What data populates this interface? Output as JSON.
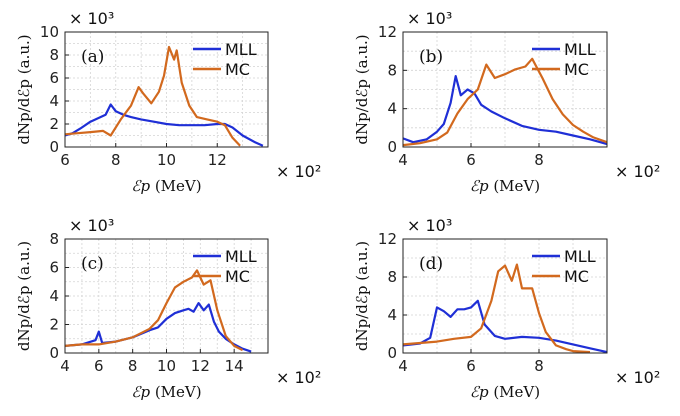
{
  "chart_data": [
    {
      "type": "line",
      "panel_label": "(a)",
      "xlabel_sym": "ℰp",
      "xlabel_unit": "(MeV)",
      "ylabel": "dNp/dℰp (a.u.)",
      "x_multiplier": "× 10²",
      "y_multiplier": "× 10³",
      "xlim": [
        6,
        14
      ],
      "ylim": [
        0,
        10
      ],
      "xticks": [
        6,
        8,
        10,
        12
      ],
      "yticks": [
        0,
        2,
        4,
        6,
        8,
        10
      ],
      "grid": true,
      "legend_position": "top-right",
      "series": [
        {
          "name": "MLL",
          "color": "#1f2fd6",
          "x": [
            6,
            6.3,
            6.6,
            7,
            7.3,
            7.6,
            7.8,
            8,
            8.3,
            8.6,
            9,
            9.5,
            10,
            10.5,
            11,
            11.5,
            12,
            12.3,
            12.6,
            13,
            13.5,
            13.8
          ],
          "y": [
            1.0,
            1.2,
            1.6,
            2.2,
            2.5,
            2.8,
            3.7,
            3.1,
            2.8,
            2.6,
            2.4,
            2.2,
            2.0,
            1.9,
            1.9,
            1.9,
            2.0,
            2.0,
            1.7,
            1.0,
            0.4,
            0.1
          ]
        },
        {
          "name": "MC",
          "color": "#d2691e",
          "x": [
            6,
            6.5,
            7,
            7.5,
            7.8,
            8.2,
            8.6,
            8.9,
            9.1,
            9.4,
            9.7,
            9.9,
            10.1,
            10.3,
            10.4,
            10.6,
            10.9,
            11.2,
            11.6,
            12,
            12.3,
            12.6,
            12.9
          ],
          "y": [
            1.1,
            1.2,
            1.3,
            1.4,
            1.0,
            2.4,
            3.6,
            5.2,
            4.6,
            3.8,
            4.8,
            6.2,
            8.7,
            7.6,
            8.4,
            5.6,
            3.6,
            2.6,
            2.4,
            2.2,
            1.9,
            0.8,
            0.1
          ]
        }
      ]
    },
    {
      "type": "line",
      "panel_label": "(b)",
      "xlabel_sym": "ℰp",
      "xlabel_unit": "(MeV)",
      "ylabel": "dNp/dℰp (a.u.)",
      "x_multiplier": "× 10²",
      "y_multiplier": "× 10³",
      "xlim": [
        4,
        10
      ],
      "ylim": [
        0,
        12
      ],
      "xticks": [
        4,
        6,
        8
      ],
      "yticks": [
        0,
        4,
        8,
        12
      ],
      "grid": true,
      "legend_position": "top-right",
      "series": [
        {
          "name": "MLL",
          "color": "#1f2fd6",
          "x": [
            4,
            4.3,
            4.7,
            5,
            5.2,
            5.4,
            5.55,
            5.7,
            5.9,
            6.1,
            6.3,
            6.6,
            7,
            7.5,
            8,
            8.5,
            9,
            9.5,
            10
          ],
          "y": [
            0.9,
            0.5,
            0.8,
            1.6,
            2.4,
            4.6,
            7.4,
            5.4,
            6.0,
            5.6,
            4.4,
            3.7,
            3.0,
            2.2,
            1.8,
            1.6,
            1.2,
            0.8,
            0.3
          ]
        },
        {
          "name": "MC",
          "color": "#d2691e",
          "x": [
            4,
            4.5,
            5,
            5.3,
            5.6,
            5.9,
            6.2,
            6.45,
            6.7,
            7,
            7.3,
            7.6,
            7.8,
            8.1,
            8.4,
            8.7,
            9,
            9.3,
            9.6,
            10
          ],
          "y": [
            0.2,
            0.4,
            0.8,
            1.5,
            3.5,
            5.0,
            6.0,
            8.6,
            7.2,
            7.6,
            8.1,
            8.4,
            9.2,
            7.2,
            5.0,
            3.4,
            2.3,
            1.6,
            1.0,
            0.5
          ]
        }
      ]
    },
    {
      "type": "line",
      "panel_label": "(c)",
      "xlabel_sym": "ℰp",
      "xlabel_unit": "(MeV)",
      "ylabel": "dNp/dℰp (a.u.)",
      "x_multiplier": "× 10²",
      "y_multiplier": "× 10³",
      "xlim": [
        4,
        16
      ],
      "ylim": [
        0,
        8
      ],
      "xticks": [
        4,
        6,
        8,
        10,
        12,
        14
      ],
      "yticks": [
        0,
        2,
        4,
        6,
        8
      ],
      "grid": true,
      "legend_position": "top-right",
      "series": [
        {
          "name": "MLL",
          "color": "#1f2fd6",
          "x": [
            4,
            5,
            5.8,
            6,
            6.2,
            7,
            8,
            9,
            9.5,
            10,
            10.5,
            11,
            11.3,
            11.6,
            11.9,
            12.2,
            12.5,
            12.8,
            13.1,
            13.5,
            14,
            14.5,
            15
          ],
          "y": [
            0.5,
            0.6,
            0.9,
            1.5,
            0.7,
            0.8,
            1.1,
            1.6,
            1.8,
            2.4,
            2.8,
            3.0,
            3.1,
            2.9,
            3.5,
            3.0,
            3.4,
            2.2,
            1.5,
            1.0,
            0.6,
            0.3,
            0.1
          ]
        },
        {
          "name": "MC",
          "color": "#d2691e",
          "x": [
            4,
            5,
            6,
            7,
            8,
            9,
            9.5,
            10,
            10.5,
            11,
            11.5,
            11.8,
            12.2,
            12.6,
            13,
            13.5,
            14,
            14.5
          ],
          "y": [
            0.5,
            0.6,
            0.6,
            0.8,
            1.1,
            1.7,
            2.3,
            3.5,
            4.6,
            5.0,
            5.3,
            5.8,
            4.8,
            5.1,
            3.0,
            1.2,
            0.5,
            0.2
          ]
        }
      ]
    },
    {
      "type": "line",
      "panel_label": "(d)",
      "xlabel_sym": "ℰp",
      "xlabel_unit": "(MeV)",
      "ylabel": "dNp/dℰp (a.u.)",
      "x_multiplier": "× 10²",
      "y_multiplier": "× 10³",
      "xlim": [
        4,
        10
      ],
      "ylim": [
        0,
        12
      ],
      "xticks": [
        4,
        6,
        8
      ],
      "yticks": [
        0,
        4,
        8,
        12
      ],
      "grid": true,
      "legend_position": "top-right",
      "series": [
        {
          "name": "MLL",
          "color": "#1f2fd6",
          "x": [
            4,
            4.5,
            4.8,
            5,
            5.2,
            5.4,
            5.6,
            5.8,
            6,
            6.2,
            6.4,
            6.7,
            7,
            7.5,
            8,
            8.5,
            9,
            9.5,
            10
          ],
          "y": [
            0.8,
            1.0,
            1.6,
            4.8,
            4.4,
            3.8,
            4.6,
            4.6,
            4.8,
            5.5,
            3.0,
            1.8,
            1.5,
            1.7,
            1.6,
            1.3,
            0.9,
            0.5,
            0.1
          ]
        },
        {
          "name": "MC",
          "color": "#d2691e",
          "x": [
            4,
            5,
            5.5,
            6,
            6.3,
            6.6,
            6.8,
            7.0,
            7.2,
            7.35,
            7.5,
            7.8,
            8,
            8.2,
            8.5,
            8.8,
            9,
            9.5
          ],
          "y": [
            0.9,
            1.2,
            1.5,
            1.7,
            2.6,
            5.5,
            8.6,
            9.2,
            7.6,
            9.3,
            6.8,
            6.8,
            4.2,
            2.2,
            0.8,
            0.4,
            0.2,
            0.1
          ]
        }
      ]
    }
  ]
}
